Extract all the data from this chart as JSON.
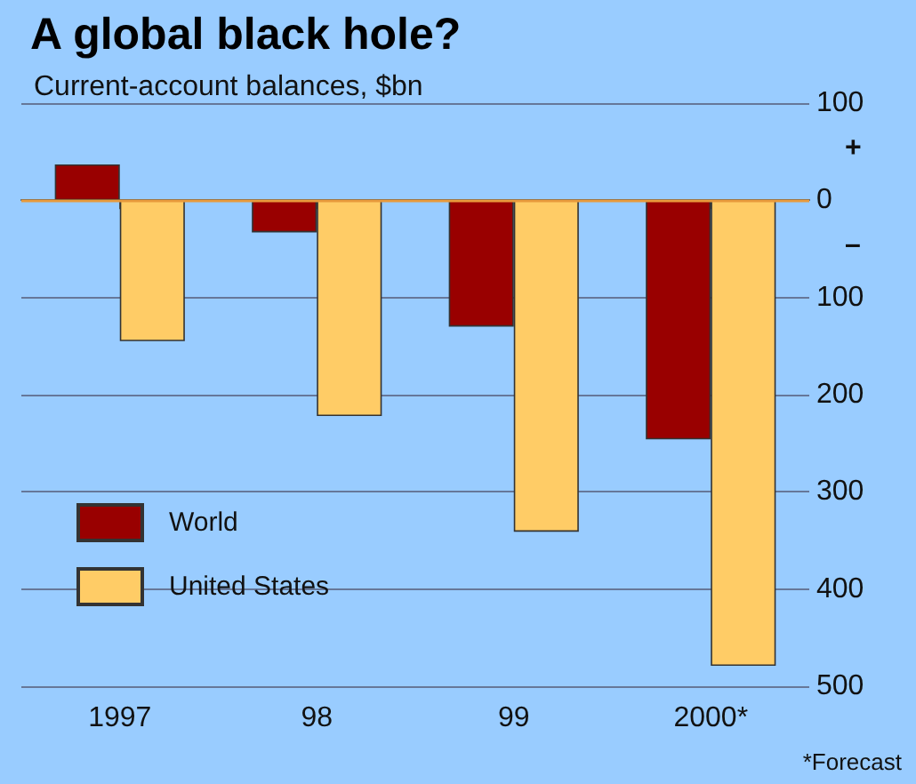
{
  "chart_data": {
    "type": "bar",
    "title": "A global black hole?",
    "subtitle": "Current-account balances, $bn",
    "categories": [
      "1997",
      "98",
      "99",
      "2000*"
    ],
    "series": [
      {
        "name": "World",
        "color": "#990000",
        "values": [
          37,
          -33,
          -130,
          -246
        ]
      },
      {
        "name": "United States",
        "color": "#ffcc66",
        "values": [
          -145,
          -222,
          -341,
          -479
        ]
      }
    ],
    "ylim": [
      -500,
      100
    ],
    "yticks": [
      {
        "value": -500,
        "label": "500"
      },
      {
        "value": -400,
        "label": "400"
      },
      {
        "value": -300,
        "label": "300"
      },
      {
        "value": -200,
        "label": "200"
      },
      {
        "value": -100,
        "label": "100"
      },
      0,
      100
    ],
    "ref_lines": [
      {
        "axis": "y",
        "value": 0,
        "color": "#e89a3c"
      }
    ],
    "grid": "y",
    "legend": "left",
    "annotations": [
      "+",
      "–",
      "*Forecast"
    ]
  }
}
